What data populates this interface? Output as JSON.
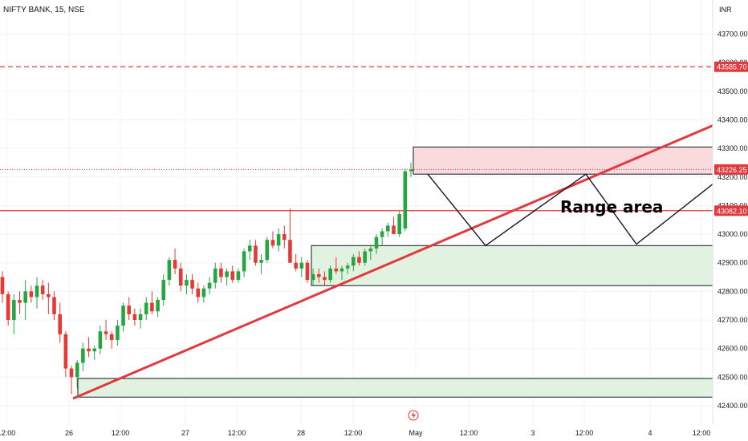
{
  "chart_data": {
    "type": "candlestick",
    "title": "NIFTY BANK, 15, NSE",
    "currency": "INR",
    "ylim": [
      42370,
      43800
    ],
    "y_ticks": [
      43700,
      43600,
      43500,
      43400,
      43300,
      43200,
      43100,
      43000,
      42900,
      42800,
      42700,
      42600,
      42500,
      42400
    ],
    "y_tick_labels": [
      "43700.00",
      "43600.00",
      "43500.00",
      "43400.00",
      "43300.00",
      "43200.00",
      "43100.00",
      "43000.00",
      "42900.00",
      "42800.00",
      "42700.00",
      "42600.00",
      "42500.00",
      "42400.00"
    ],
    "x_tick_labels": [
      "12:00",
      "26",
      "12:00",
      "27",
      "12:00",
      "28",
      "12:00",
      "May",
      "12:00",
      "3",
      "12:00",
      "4",
      "12:00"
    ],
    "price_labels": [
      {
        "value": 43585.7,
        "text": "43585.70",
        "color": "#e03a3e",
        "style": "dashed"
      },
      {
        "value": 43226.25,
        "text": "43226.25",
        "color": "#e03a3e",
        "style": "dotted"
      },
      {
        "value": 43082.1,
        "text": "43082.10",
        "color": "#e03a3e",
        "style": "solid"
      }
    ],
    "annotations": [
      {
        "type": "text",
        "text": "Range area"
      },
      {
        "type": "zone",
        "kind": "resistance",
        "from": 43210,
        "to": 43305,
        "color": "#fadadd"
      },
      {
        "type": "zone",
        "kind": "support",
        "from": 42820,
        "to": 42960,
        "color": "#e1f2e0"
      },
      {
        "type": "zone",
        "kind": "support",
        "from": 42430,
        "to": 42495,
        "color": "#e1f2e0"
      },
      {
        "type": "trendline",
        "color": "#e03a3e",
        "from": 42425,
        "to": 43380
      }
    ],
    "colors": {
      "up": "#26a641",
      "down": "#e53935"
    },
    "candles": [
      [
        42850,
        42870,
        42760,
        42790
      ],
      [
        42790,
        42800,
        42680,
        42700
      ],
      [
        42700,
        42790,
        42650,
        42770
      ],
      [
        42770,
        42800,
        42720,
        42760
      ],
      [
        42760,
        42840,
        42700,
        42800
      ],
      [
        42800,
        42820,
        42760,
        42780
      ],
      [
        42780,
        42850,
        42740,
        42820
      ],
      [
        42820,
        42840,
        42770,
        42790
      ],
      [
        42790,
        42830,
        42720,
        42780
      ],
      [
        42780,
        42800,
        42700,
        42720
      ],
      [
        42720,
        42760,
        42620,
        42650
      ],
      [
        42650,
        42660,
        42500,
        42530
      ],
      [
        42530,
        42540,
        42440,
        42500
      ],
      [
        42500,
        42560,
        42460,
        42550
      ],
      [
        42550,
        42620,
        42520,
        42600
      ],
      [
        42600,
        42640,
        42570,
        42590
      ],
      [
        42590,
        42610,
        42560,
        42600
      ],
      [
        42600,
        42680,
        42580,
        42660
      ],
      [
        42660,
        42700,
        42630,
        42650
      ],
      [
        42650,
        42660,
        42600,
        42630
      ],
      [
        42630,
        42700,
        42610,
        42680
      ],
      [
        42680,
        42760,
        42660,
        42750
      ],
      [
        42750,
        42780,
        42700,
        42720
      ],
      [
        42720,
        42740,
        42680,
        42700
      ],
      [
        42700,
        42740,
        42670,
        42720
      ],
      [
        42720,
        42780,
        42700,
        42760
      ],
      [
        42760,
        42800,
        42720,
        42730
      ],
      [
        42730,
        42780,
        42710,
        42770
      ],
      [
        42770,
        42860,
        42750,
        42840
      ],
      [
        42840,
        42920,
        42820,
        42910
      ],
      [
        42910,
        42950,
        42860,
        42880
      ],
      [
        42880,
        42900,
        42800,
        42820
      ],
      [
        42820,
        42860,
        42790,
        42840
      ],
      [
        42840,
        42860,
        42790,
        42810
      ],
      [
        42810,
        42830,
        42760,
        42780
      ],
      [
        42780,
        42820,
        42760,
        42810
      ],
      [
        42810,
        42850,
        42790,
        42830
      ],
      [
        42830,
        42900,
        42810,
        42880
      ],
      [
        42880,
        42900,
        42830,
        42850
      ],
      [
        42850,
        42880,
        42820,
        42870
      ],
      [
        42870,
        42890,
        42830,
        42840
      ],
      [
        42840,
        42880,
        42830,
        42870
      ],
      [
        42870,
        42950,
        42850,
        42940
      ],
      [
        42940,
        42980,
        42910,
        42960
      ],
      [
        42960,
        42980,
        42890,
        42900
      ],
      [
        42900,
        42930,
        42860,
        42910
      ],
      [
        42910,
        42990,
        42900,
        42980
      ],
      [
        42980,
        43010,
        42950,
        42960
      ],
      [
        42960,
        43020,
        42940,
        43000
      ],
      [
        43000,
        43030,
        42950,
        42980
      ],
      [
        42980,
        43090,
        42900,
        42900
      ],
      [
        42900,
        42930,
        42870,
        42880
      ],
      [
        42880,
        42920,
        42850,
        42900
      ],
      [
        42900,
        42910,
        42830,
        42840
      ],
      [
        42840,
        42880,
        42820,
        42860
      ],
      [
        42860,
        42880,
        42830,
        42850
      ],
      [
        42850,
        42870,
        42820,
        42840
      ],
      [
        42840,
        42890,
        42830,
        42880
      ],
      [
        42880,
        42920,
        42860,
        42870
      ],
      [
        42870,
        42890,
        42840,
        42880
      ],
      [
        42880,
        42900,
        42860,
        42890
      ],
      [
        42890,
        42930,
        42870,
        42920
      ],
      [
        42920,
        42940,
        42890,
        42900
      ],
      [
        42900,
        42950,
        42890,
        42940
      ],
      [
        42940,
        42960,
        42910,
        42950
      ],
      [
        42950,
        43000,
        42930,
        42990
      ],
      [
        42990,
        43020,
        42960,
        43010
      ],
      [
        43010,
        43040,
        42990,
        43030
      ],
      [
        43030,
        43060,
        43000,
        43000
      ],
      [
        43000,
        43080,
        42990,
        43070
      ],
      [
        43020,
        43230,
        43010,
        43220
      ],
      [
        43220,
        43250,
        43200,
        43226
      ]
    ]
  }
}
